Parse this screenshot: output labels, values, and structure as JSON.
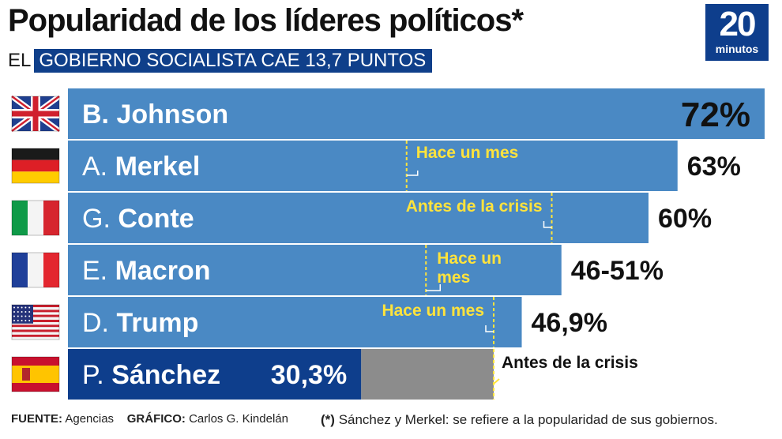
{
  "header": {
    "title": "Popularidad de los líderes políticos*",
    "subtitle_prefix": "EL",
    "subtitle_highlight": "GOBIERNO SOCIALISTA CAE 13,7 PUNTOS"
  },
  "logo": {
    "number": "20",
    "word": "minutos"
  },
  "colors": {
    "bar": "#4a89c4",
    "bar_highlight": "#0e3e8c",
    "previous": "#8c8c8c",
    "marker": "#ffe33c"
  },
  "chart_data": {
    "type": "bar",
    "orientation": "horizontal",
    "xlim": [
      0,
      72
    ],
    "categories": [
      "B. Johnson",
      "A. Merkel",
      "G. Conte",
      "E. Macron",
      "D. Trump",
      "P. Sánchez"
    ],
    "bars": [
      {
        "initial": "B.",
        "surname": "Johnson",
        "flag": "uk-flag",
        "value": 72,
        "label": "72%"
      },
      {
        "initial": "A.",
        "surname": "Merkel",
        "flag": "germany-flag",
        "value": 63,
        "label": "63%",
        "previous": 35,
        "previous_label": "Hace un mes"
      },
      {
        "initial": "G.",
        "surname": "Conte",
        "flag": "italy-flag",
        "value": 60,
        "label": "60%",
        "previous": 50,
        "previous_label": "Antes de la crisis"
      },
      {
        "initial": "E.",
        "surname": "Macron",
        "flag": "france-flag",
        "value": 51,
        "label": "46-51%",
        "previous": 37,
        "previous_label": "Hace un mes"
      },
      {
        "initial": "D.",
        "surname": "Trump",
        "flag": "usa-flag",
        "value": 46.9,
        "label": "46,9%",
        "previous": 44,
        "previous_label": "Hace un mes"
      },
      {
        "initial": "P.",
        "surname": "Sánchez",
        "flag": "spain-flag",
        "value": 30.3,
        "label": "30,3%",
        "previous": 44,
        "previous_label": "Antes de la crisis"
      }
    ]
  },
  "footer": {
    "source_label": "FUENTE:",
    "source": "Agencias",
    "graphic_label": "GRÁFICO:",
    "graphic": "Carlos G. Kindelán",
    "note_mark": "(*)",
    "note": "Sánchez y Merkel: se refiere a la popularidad de sus gobiernos."
  }
}
